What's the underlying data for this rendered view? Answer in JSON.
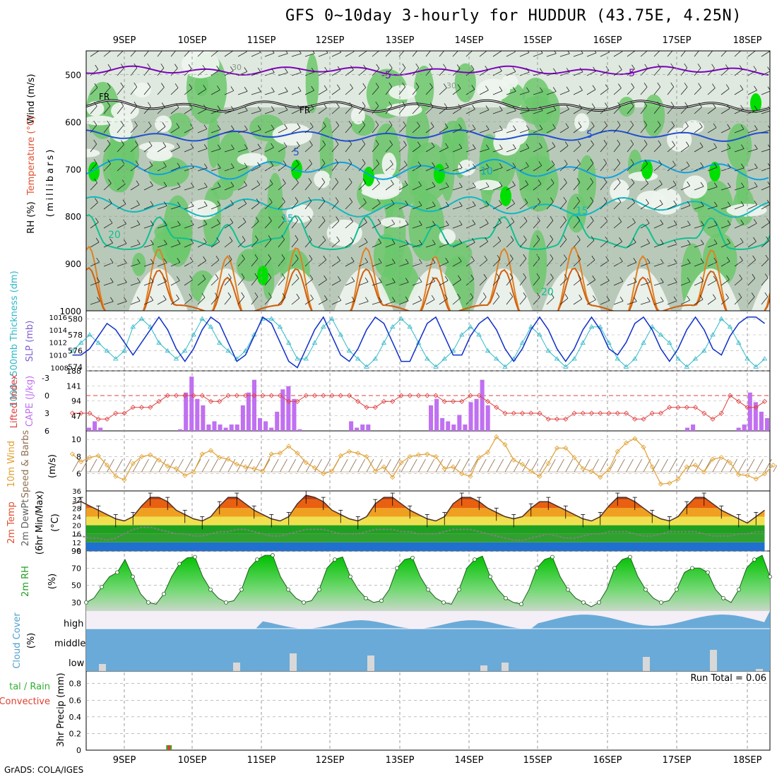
{
  "title": "GFS 0~10day 3-hourly for HUDDUR (43.75E, 4.25N)",
  "footer": "GrADS: COLA/IGES",
  "run_total": "Run Total = 0.06",
  "date_labels": [
    "9SEP",
    "10SEP",
    "11SEP",
    "12SEP",
    "13SEP",
    "14SEP",
    "15SEP",
    "16SEP",
    "17SEP",
    "18SEP"
  ],
  "panel_labels": {
    "upper_wind": "Wind (m/s)",
    "upper_temp": "Temperature (°C)",
    "upper_rh": "RH (%)",
    "upper_unit": "(millibars)",
    "thick": "1000~500mb Thickness (dm)",
    "slp": "SLP (mb)",
    "li": "Lifted Index",
    "cape": "CAPE (J/kg)",
    "wind10_a": "10m Wind",
    "wind10_b": "Speed & Barbs",
    "wind10_unit": "(m/s)",
    "temp_a": "2m Temp",
    "temp_b": "2m DewPt",
    "temp_c": "(6hr Min/Max)",
    "temp_unit": "(°C)",
    "rh2m": "2m RH",
    "rh2m_unit": "(%)",
    "cloud": "Cloud Cover",
    "cloud_unit": "(%)",
    "cloud_high": "high",
    "cloud_mid": "middle",
    "cloud_low": "low",
    "precip_a": "tal / Rain",
    "precip_b": "Convective",
    "precip_c": "3hr Precip (mm)"
  },
  "chart_data": [
    {
      "type": "contour",
      "panel": "upper-air",
      "yaxis_ticks": [
        "500",
        "600",
        "700",
        "800",
        "900",
        "1000"
      ],
      "ylim": [
        1000,
        450
      ],
      "temperature_contours_c": [
        "-5",
        "5",
        "10",
        "15",
        "20"
      ],
      "freezing_label": "FR",
      "wind_speed_contours": [
        "30"
      ],
      "colors": {
        "rh_light": "#e8f0e8",
        "rh_mid": "#b8c8b8",
        "rh_green": "#60c860",
        "rh_bright": "#00e000",
        "t_minus5": "#8000c0",
        "t_5": "#2050d0",
        "t_10": "#10a0e0",
        "t_15": "#10b8c0",
        "t_20": "#10c090",
        "t_warm": "#e08020"
      }
    },
    {
      "type": "line",
      "panel": "thickness-slp",
      "left_ticks": [
        "580",
        "578",
        "576",
        "574"
      ],
      "right_ticks": [
        "1016",
        "1014",
        "1012",
        "1010",
        "1008"
      ],
      "thickness_dm": [
        576,
        577,
        578,
        577,
        576,
        575,
        576,
        579,
        580,
        579,
        577,
        576,
        575,
        576,
        578,
        580,
        579,
        577,
        576,
        575,
        576,
        578,
        580,
        580,
        579,
        577,
        575,
        575,
        577,
        579,
        580,
        578,
        576,
        575,
        574,
        575,
        577,
        579,
        580,
        579,
        577,
        575,
        574,
        575,
        576,
        578,
        579,
        578,
        576,
        575,
        574,
        575,
        577,
        579,
        578,
        576,
        575,
        574,
        575,
        577,
        579,
        579,
        577,
        575,
        574,
        575,
        577,
        579,
        578,
        577,
        575,
        574,
        575,
        576,
        578,
        580,
        579,
        577,
        575,
        574,
        575
      ],
      "slp_mb": [
        1010,
        1010,
        1011,
        1013,
        1015,
        1014,
        1012,
        1010,
        1012,
        1014,
        1016,
        1014,
        1011,
        1009,
        1011,
        1014,
        1016,
        1015,
        1012,
        1009,
        1010,
        1013,
        1016,
        1015,
        1012,
        1009,
        1008,
        1011,
        1014,
        1016,
        1013,
        1010,
        1009,
        1011,
        1014,
        1016,
        1015,
        1012,
        1009,
        1009,
        1012,
        1015,
        1016,
        1013,
        1010,
        1010,
        1013,
        1015,
        1016,
        1014,
        1011,
        1009,
        1011,
        1014,
        1016,
        1014,
        1011,
        1009,
        1011,
        1014,
        1016,
        1014,
        1011,
        1010,
        1012,
        1015,
        1016,
        1014,
        1011,
        1009,
        1011,
        1014,
        1016,
        1014,
        1011,
        1010,
        1013,
        1015,
        1016,
        1016,
        1015
      ],
      "colors": {
        "thickness": "#30b8c8",
        "slp": "#1030c8"
      }
    },
    {
      "type": "bar",
      "panel": "lifted-index-cape",
      "left_ticks": [
        "-3",
        "0",
        "3",
        "6"
      ],
      "right_ticks": [
        "188",
        "141",
        "94",
        "47"
      ],
      "lifted_index": [
        3,
        3,
        3,
        4,
        4,
        3,
        3,
        2,
        2,
        2,
        1,
        0,
        0,
        0,
        0,
        0,
        1,
        1,
        0,
        0,
        0,
        0,
        0,
        0,
        0,
        1,
        1,
        0,
        0,
        0,
        0,
        0,
        0,
        1,
        2,
        2,
        1,
        1,
        0,
        0,
        0,
        0,
        0,
        1,
        1,
        1,
        0,
        0,
        1,
        2,
        3,
        3,
        3,
        3,
        3,
        4,
        4,
        4,
        3,
        3,
        3,
        3,
        3,
        3,
        3,
        4,
        4,
        3,
        3,
        2,
        2,
        2,
        2,
        3,
        4,
        3,
        0,
        1,
        2,
        2,
        1
      ],
      "cape_jkg": [
        10,
        30,
        10,
        0,
        0,
        0,
        0,
        0,
        0,
        0,
        0,
        0,
        0,
        0,
        0,
        0,
        5,
        120,
        170,
        100,
        80,
        20,
        30,
        20,
        10,
        20,
        20,
        80,
        120,
        160,
        40,
        30,
        10,
        60,
        130,
        140,
        100,
        5,
        0,
        0,
        0,
        0,
        0,
        0,
        0,
        0,
        30,
        10,
        20,
        20,
        0,
        0,
        0,
        0,
        0,
        0,
        0,
        0,
        0,
        0,
        80,
        100,
        40,
        30,
        20,
        50,
        20,
        90,
        100,
        160,
        80,
        0,
        0,
        0,
        0,
        0,
        0,
        0,
        0,
        0,
        0,
        0,
        0,
        0,
        0,
        0,
        0,
        0,
        0,
        0,
        0,
        0,
        0,
        0,
        0,
        0,
        0,
        0,
        0,
        0,
        0,
        0,
        0,
        0,
        0,
        10,
        20,
        0,
        0,
        0,
        0,
        0,
        0,
        0,
        10,
        20,
        120,
        90,
        60,
        40
      ],
      "colors": {
        "cape": "#c070f0",
        "li": "#e04040"
      }
    },
    {
      "type": "line",
      "panel": "wind-10m",
      "yaxis_ticks": [
        "10",
        "8",
        "6"
      ],
      "speed_ms": [
        8.3,
        7.4,
        7.9,
        8.1,
        7.0,
        5.7,
        5.3,
        7.2,
        8.0,
        8.2,
        7.6,
        6.9,
        6.6,
        5.8,
        6.2,
        8.3,
        8.7,
        7.9,
        7.7,
        7.1,
        6.8,
        6.6,
        6.3,
        8.3,
        8.4,
        9.2,
        8.4,
        7.3,
        6.7,
        6.0,
        6.3,
        8.1,
        8.6,
        8.4,
        8.0,
        6.3,
        6.8,
        5.6,
        7.3,
        8.0,
        8.2,
        8.3,
        8.0,
        6.6,
        6.8,
        6.0,
        5.7,
        7.9,
        8.5,
        10.3,
        9.4,
        7.6,
        7.1,
        6.3,
        5.7,
        7.2,
        9.0,
        9.0,
        7.9,
        6.6,
        6.3,
        5.6,
        6.5,
        8.6,
        9.6,
        10.1,
        9.1,
        6.8,
        4.8,
        4.9,
        5.4,
        6.8,
        7.0,
        6.2,
        7.7,
        7.9,
        7.3,
        5.9,
        5.8,
        5.4,
        6.0,
        7.0
      ],
      "colors": {
        "speed": "#e0a030",
        "barbs": "#907050"
      }
    },
    {
      "type": "area",
      "panel": "temperature-2m",
      "yaxis_ticks": [
        "36",
        "32",
        "28",
        "24",
        "20",
        "16",
        "12",
        "8"
      ],
      "temp_c": [
        30,
        31,
        29,
        27,
        25,
        23,
        22,
        24,
        29,
        33,
        33,
        31,
        27,
        25,
        23,
        22,
        24,
        29,
        33,
        33,
        30,
        27,
        25,
        23,
        22,
        24,
        30,
        34,
        33,
        31,
        27,
        25,
        23,
        22,
        24,
        30,
        33,
        33,
        30,
        27,
        25,
        23,
        22,
        24,
        30,
        33,
        33,
        31,
        28,
        26,
        24,
        23,
        24,
        28,
        31,
        31,
        29,
        27,
        25,
        23,
        22,
        24,
        29,
        33,
        33,
        31,
        28,
        25,
        23,
        22,
        24,
        29,
        33,
        33,
        30,
        27,
        25,
        23,
        21,
        24,
        27
      ],
      "dewpoint_c": [
        15,
        15,
        14,
        14,
        13,
        14,
        16,
        18,
        19,
        19,
        18,
        17,
        16,
        16,
        15,
        15,
        16,
        17,
        17,
        18,
        18,
        17,
        16,
        15,
        15,
        16,
        17,
        18,
        18,
        18,
        17,
        16,
        16,
        16,
        17,
        18,
        18,
        18,
        17,
        17,
        16,
        16,
        16,
        17,
        18,
        18,
        18,
        17,
        16,
        15,
        14,
        13,
        13,
        14,
        15,
        16,
        15,
        14,
        14,
        15,
        16,
        16,
        17,
        17,
        17,
        16,
        15,
        15,
        16,
        17,
        17,
        17,
        17,
        16,
        15,
        15,
        15,
        16,
        16,
        17,
        17
      ],
      "colors": {
        "temp_line": "#503028",
        "dewpoint": "#808080",
        "band_orange": "#e86010",
        "band_yellow": "#e0d040",
        "band_green": "#20a020",
        "band_blue": "#2070d0"
      }
    },
    {
      "type": "area",
      "panel": "rh-2m",
      "yaxis_ticks": [
        "90",
        "70",
        "50",
        "30"
      ],
      "rh_pct": [
        30,
        35,
        48,
        60,
        65,
        80,
        60,
        40,
        30,
        28,
        40,
        60,
        75,
        82,
        83,
        60,
        45,
        35,
        30,
        32,
        45,
        70,
        80,
        85,
        85,
        60,
        45,
        35,
        30,
        32,
        45,
        70,
        80,
        83,
        60,
        45,
        35,
        30,
        32,
        45,
        70,
        80,
        82,
        60,
        45,
        35,
        30,
        28,
        45,
        70,
        80,
        84,
        60,
        45,
        35,
        30,
        28,
        45,
        70,
        80,
        83,
        60,
        45,
        35,
        30,
        25,
        30,
        45,
        70,
        80,
        83,
        60,
        45,
        35,
        30,
        32,
        45,
        65,
        70,
        70,
        65,
        45,
        35,
        30,
        45,
        70,
        80,
        85,
        60
      ],
      "colors": {
        "rh_fill": "#30c030",
        "rh_line": "#206020"
      }
    },
    {
      "type": "bar",
      "panel": "cloud-cover",
      "levels": [
        "high",
        "middle",
        "low"
      ],
      "colors": {
        "cloud": "#6aaad8",
        "clear": "#f4eef6",
        "low_cloud": "#d8d8d8"
      }
    },
    {
      "type": "bar",
      "panel": "precipitation",
      "yaxis_ticks": [
        "0.8",
        "0.6",
        "0.4",
        "0.2",
        "0"
      ],
      "ylim": [
        0,
        0.95
      ],
      "precip_mm": [
        0,
        0,
        0,
        0,
        0,
        0,
        0,
        0,
        0,
        0,
        0,
        0.06,
        0,
        0,
        0,
        0,
        0,
        0,
        0,
        0,
        0,
        0,
        0,
        0,
        0,
        0,
        0,
        0,
        0,
        0,
        0,
        0,
        0,
        0,
        0,
        0,
        0,
        0,
        0,
        0,
        0,
        0,
        0,
        0,
        0,
        0,
        0,
        0,
        0,
        0,
        0,
        0,
        0,
        0,
        0,
        0,
        0,
        0,
        0,
        0,
        0,
        0,
        0,
        0,
        0,
        0,
        0,
        0,
        0,
        0,
        0,
        0,
        0,
        0,
        0,
        0,
        0,
        0,
        0,
        0,
        0
      ],
      "colors": {
        "total": "#30b030",
        "convective": "#e04030"
      }
    }
  ]
}
